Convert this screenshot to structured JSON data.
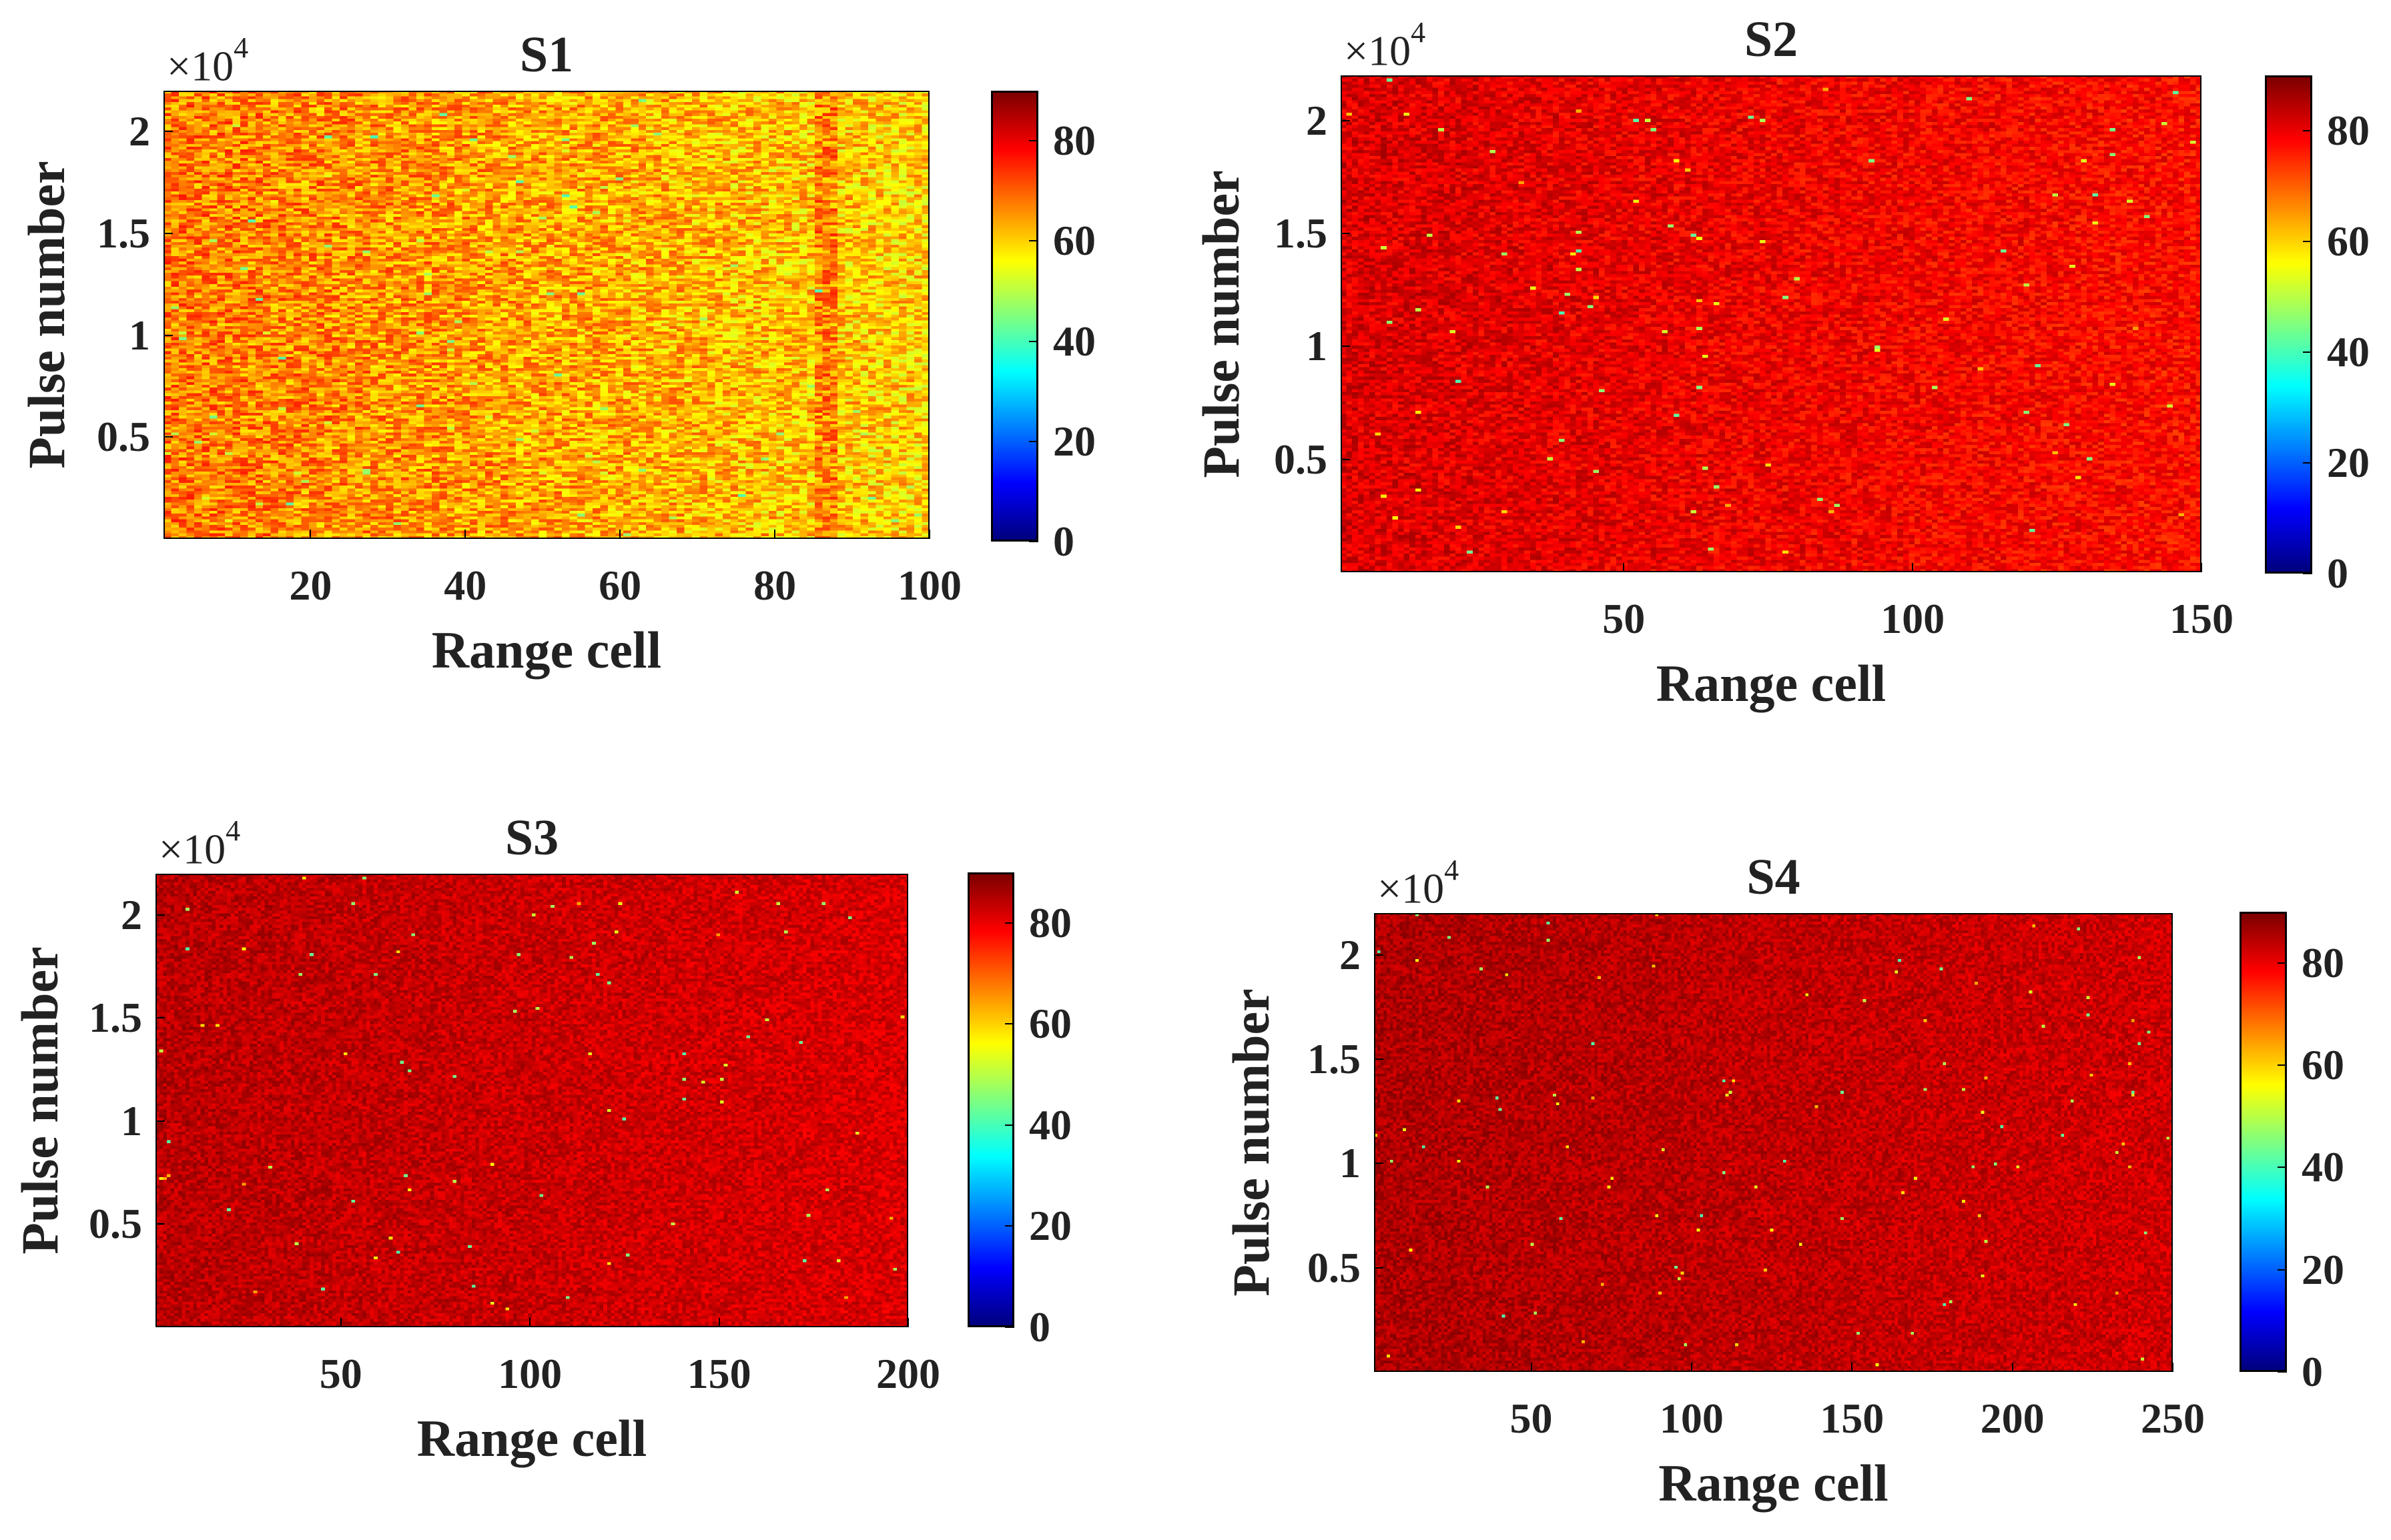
{
  "chart_data": [
    {
      "type": "heatmap",
      "title": "S1",
      "xlabel": "Range cell",
      "ylabel": "Pulse number",
      "y_multiplier": "×10",
      "y_multiplier_exp": "4",
      "xlim": [
        1,
        100
      ],
      "ylim": [
        0,
        2.2
      ],
      "xticks": [
        20,
        40,
        60,
        80,
        100
      ],
      "xtick_labels": [
        "20",
        "40",
        "60",
        "80",
        "100"
      ],
      "yticks": [
        0.5,
        1,
        1.5,
        2
      ],
      "ytick_labels": [
        "0.5",
        "1",
        "1.5",
        "2"
      ],
      "colorbar": {
        "min": 0,
        "max": 90,
        "ticks": [
          "0",
          "20",
          "40",
          "60",
          "80"
        ],
        "tick_values": [
          0,
          20,
          40,
          60,
          80
        ],
        "colormap": "jet"
      },
      "value_description": "mostly 60-80 amplitude, higher near left, orange/yellow",
      "base_level": 68,
      "gradient": -8,
      "spread": 9,
      "noise_rate": 0.01,
      "bright_column": 87
    },
    {
      "type": "heatmap",
      "title": "S2",
      "xlabel": "Range cell",
      "ylabel": "Pulse number",
      "y_multiplier": "×10",
      "y_multiplier_exp": "4",
      "xlim": [
        1,
        150
      ],
      "ylim": [
        0,
        2.2
      ],
      "xticks": [
        50,
        100,
        150
      ],
      "xtick_labels": [
        "50",
        "100",
        "150"
      ],
      "yticks": [
        0.5,
        1,
        1.5,
        2
      ],
      "ytick_labels": [
        "0.5",
        "1",
        "1.5",
        "2"
      ],
      "colorbar": {
        "min": 0,
        "max": 90,
        "ticks": [
          "0",
          "20",
          "40",
          "60",
          "80"
        ],
        "tick_values": [
          0,
          20,
          40,
          60,
          80
        ],
        "colormap": "jet"
      },
      "value_description": "mostly 75-90 amplitude, dark red",
      "base_level": 82,
      "gradient": -4,
      "spread": 5,
      "noise_rate": 0.004,
      "bright_column": null
    },
    {
      "type": "heatmap",
      "title": "S3",
      "xlabel": "Range cell",
      "ylabel": "Pulse number",
      "y_multiplier": "×10",
      "y_multiplier_exp": "4",
      "xlim": [
        1,
        200
      ],
      "ylim": [
        0,
        2.2
      ],
      "xticks": [
        50,
        100,
        150,
        200
      ],
      "xtick_labels": [
        "50",
        "100",
        "150",
        "200"
      ],
      "yticks": [
        0.5,
        1,
        1.5,
        2
      ],
      "ytick_labels": [
        "0.5",
        "1",
        "1.5",
        "2"
      ],
      "colorbar": {
        "min": 0,
        "max": 90,
        "ticks": [
          "0",
          "20",
          "40",
          "60",
          "80"
        ],
        "tick_values": [
          0,
          20,
          40,
          60,
          80
        ],
        "colormap": "jet"
      },
      "value_description": "mostly 80-90 amplitude, dark red",
      "base_level": 85,
      "gradient": -3,
      "spread": 4,
      "noise_rate": 0.003,
      "bright_column": null
    },
    {
      "type": "heatmap",
      "title": "S4",
      "xlabel": "Range cell",
      "ylabel": "Pulse number",
      "y_multiplier": "×10",
      "y_multiplier_exp": "4",
      "xlim": [
        1,
        250
      ],
      "ylim": [
        0,
        2.2
      ],
      "xticks": [
        50,
        100,
        150,
        200,
        250
      ],
      "xtick_labels": [
        "50",
        "100",
        "150",
        "200",
        "250"
      ],
      "yticks": [
        0.5,
        1,
        1.5,
        2
      ],
      "ytick_labels": [
        "0.5",
        "1",
        "1.5",
        "2"
      ],
      "colorbar": {
        "min": 0,
        "max": 90,
        "ticks": [
          "0",
          "20",
          "40",
          "60",
          "80"
        ],
        "tick_values": [
          0,
          20,
          40,
          60,
          80
        ],
        "colormap": "jet"
      },
      "value_description": "mostly 80-90 amplitude, dark red",
      "base_level": 86,
      "gradient": -3,
      "spread": 4,
      "noise_rate": 0.003,
      "bright_column": null
    }
  ]
}
